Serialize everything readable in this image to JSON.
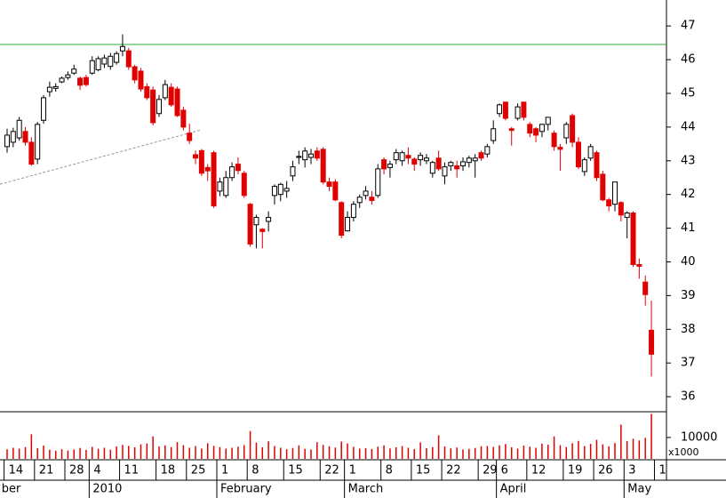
{
  "chart_data": {
    "type": "candlestick",
    "up_color": "#ffffff",
    "down_color": "#e00000",
    "open": [
      43.42,
      43.55,
      43.68,
      43.87,
      43.55,
      43.05,
      44.2,
      45.05,
      45.15,
      45.34,
      45.47,
      45.6,
      45.45,
      45.47,
      45.6,
      45.7,
      45.87,
      45.8,
      45.92,
      46.26,
      46.26,
      45.79,
      45.66,
      45.2,
      45.1,
      44.4,
      44.87,
      45.18,
      45.13,
      44.5,
      43.82,
      43.18,
      43.3,
      42.8,
      43.24,
      42.1,
      41.97,
      42.5,
      42.9,
      42.63,
      41.71,
      41.1,
      40.97,
      41.2,
      41.97,
      42.0,
      42.1,
      42.55,
      43.1,
      43.03,
      43.1,
      43.29,
      43.34,
      42.37,
      42.37,
      41.76,
      40.92,
      41.32,
      41.76,
      41.97,
      41.92,
      41.97,
      43.03,
      42.8,
      43.03,
      43.0,
      43.16,
      43.05,
      43.03,
      43.0,
      42.63,
      43.08,
      42.55,
      42.85,
      42.85,
      42.85,
      42.95,
      43.0,
      43.24,
      43.2,
      43.6,
      44.4,
      44.74,
      43.95,
      44.26,
      44.74,
      44.08,
      43.95,
      43.87,
      44.08,
      43.82,
      43.4,
      43.68,
      44.34,
      43.55,
      42.68,
      43.08,
      43.24,
      42.6,
      41.84,
      41.71,
      41.76,
      41.32,
      41.45,
      39.92,
      39.4,
      37.97
    ],
    "high": [
      43.95,
      43.98,
      44.3,
      44.0,
      43.7,
      44.15,
      44.95,
      45.35,
      45.3,
      45.5,
      45.65,
      45.85,
      45.5,
      45.55,
      46.1,
      46.1,
      46.15,
      46.2,
      46.25,
      46.75,
      46.35,
      45.85,
      45.75,
      45.3,
      45.2,
      44.95,
      45.4,
      45.3,
      45.2,
      44.6,
      44.1,
      43.3,
      43.35,
      42.9,
      43.3,
      42.5,
      42.7,
      42.95,
      43.1,
      42.7,
      41.75,
      41.4,
      41.0,
      41.5,
      42.3,
      42.35,
      42.4,
      43.0,
      43.3,
      43.4,
      43.35,
      43.4,
      43.4,
      42.5,
      42.45,
      41.8,
      41.5,
      41.8,
      42.0,
      42.25,
      42.1,
      42.9,
      43.1,
      43.0,
      43.35,
      43.3,
      43.4,
      43.1,
      43.25,
      43.2,
      43.0,
      43.3,
      42.95,
      43.0,
      43.0,
      43.1,
      43.15,
      43.2,
      43.3,
      43.5,
      44.2,
      44.7,
      44.75,
      44.0,
      44.7,
      44.75,
      44.15,
      44.0,
      44.1,
      44.3,
      43.9,
      43.5,
      44.15,
      44.4,
      43.7,
      43.1,
      43.5,
      43.3,
      42.7,
      41.9,
      42.3,
      41.8,
      41.5,
      41.5,
      40.1,
      39.6,
      38.85
    ],
    "low": [
      43.24,
      43.4,
      43.6,
      43.45,
      42.85,
      42.9,
      44.1,
      44.9,
      45.05,
      45.3,
      45.4,
      45.55,
      45.1,
      45.2,
      45.55,
      45.65,
      45.75,
      45.7,
      45.85,
      46.1,
      45.7,
      45.3,
      45.05,
      44.8,
      44.05,
      44.3,
      44.8,
      44.6,
      44.3,
      43.9,
      43.5,
      42.9,
      42.55,
      42.4,
      41.6,
      41.95,
      41.9,
      42.4,
      42.6,
      41.9,
      40.45,
      40.4,
      40.4,
      40.9,
      41.7,
      41.8,
      41.9,
      42.4,
      42.9,
      42.8,
      42.9,
      43.0,
      42.3,
      42.1,
      41.8,
      40.7,
      40.9,
      41.2,
      41.6,
      41.85,
      41.7,
      41.9,
      42.6,
      42.5,
      42.9,
      42.85,
      42.9,
      42.7,
      42.85,
      42.9,
      42.5,
      42.7,
      42.3,
      42.7,
      42.5,
      42.7,
      42.8,
      42.5,
      43.0,
      43.1,
      43.5,
      44.3,
      44.2,
      43.45,
      44.2,
      44.2,
      43.7,
      43.55,
      43.7,
      43.9,
      43.3,
      42.7,
      43.5,
      43.4,
      42.75,
      42.55,
      43.0,
      42.4,
      41.8,
      41.5,
      41.5,
      41.2,
      40.7,
      39.85,
      39.5,
      38.7,
      36.6
    ],
    "close": [
      43.76,
      43.87,
      44.2,
      43.55,
      42.9,
      44.08,
      44.87,
      45.18,
      45.2,
      45.45,
      45.55,
      45.72,
      45.24,
      45.26,
      45.97,
      46.03,
      46.05,
      46.1,
      46.18,
      46.39,
      45.79,
      45.4,
      45.13,
      44.87,
      44.13,
      44.82,
      45.26,
      44.66,
      44.34,
      44.0,
      43.6,
      43.08,
      42.63,
      42.7,
      41.66,
      42.37,
      42.5,
      42.82,
      42.71,
      41.97,
      40.53,
      41.32,
      40.9,
      41.32,
      42.24,
      42.3,
      42.18,
      42.82,
      43.13,
      43.29,
      43.2,
      43.08,
      42.37,
      42.24,
      41.84,
      40.79,
      41.32,
      41.71,
      41.92,
      42.1,
      41.82,
      42.76,
      42.76,
      42.9,
      43.24,
      43.24,
      43.08,
      42.9,
      43.16,
      43.08,
      42.95,
      42.76,
      42.82,
      42.95,
      42.76,
      42.97,
      43.08,
      43.08,
      43.08,
      43.42,
      43.95,
      44.66,
      44.26,
      43.9,
      44.6,
      44.29,
      43.82,
      43.76,
      44.08,
      44.29,
      43.42,
      43.34,
      44.08,
      43.55,
      42.82,
      43.03,
      43.42,
      42.5,
      41.84,
      41.66,
      42.37,
      41.39,
      41.45,
      39.92,
      39.87,
      39.03,
      37.26
    ],
    "volume": [
      4500,
      5200,
      4800,
      5500,
      11500,
      5000,
      6200,
      4300,
      3800,
      4500,
      3900,
      4400,
      5100,
      4200,
      5600,
      4700,
      5200,
      4300,
      5800,
      6500,
      6000,
      5400,
      6800,
      7200,
      10500,
      5800,
      6300,
      5500,
      7800,
      6400,
      5200,
      6000,
      4800,
      7300,
      6100,
      5500,
      4800,
      5200,
      5700,
      6400,
      13000,
      7600,
      5400,
      8200,
      6000,
      5200,
      4500,
      5100,
      6300,
      4700,
      4400,
      7800,
      6500,
      5900,
      5300,
      8100,
      7200,
      5600,
      4800,
      5000,
      4600,
      5700,
      6300,
      4900,
      5400,
      6000,
      5200,
      4600,
      7700,
      5000,
      5500,
      11000,
      5800,
      4900,
      5300,
      4400,
      4700,
      5100,
      5900,
      6000,
      5600,
      6300,
      6900,
      5400,
      4800,
      6200,
      5700,
      5200,
      7100,
      6600,
      10500,
      6400,
      5500,
      7300,
      8400,
      6000,
      7000,
      8900,
      6800,
      5900,
      7400,
      16000,
      8300,
      9400,
      8600,
      9800,
      21000
    ],
    "ylim": [
      35.58,
      47.77
    ],
    "yticks": [
      36,
      37,
      38,
      39,
      40,
      41,
      42,
      43,
      44,
      45,
      46,
      47
    ],
    "volume_ylim": [
      0,
      21600
    ],
    "volume_yticks": [
      10000
    ],
    "volume_unit": "x1000",
    "volume_color": "#e00000",
    "resistance": {
      "value": 46.45,
      "color": "#33aa33"
    },
    "trendline": {
      "x": [
        0,
        32
      ],
      "y": [
        42.32,
        43.92
      ],
      "color": "#999999"
    },
    "xticks": [
      {
        "value": 0,
        "label": "14"
      },
      {
        "value": 5,
        "label": "21"
      },
      {
        "value": 10,
        "label": "28"
      },
      {
        "value": 14,
        "label": "4"
      },
      {
        "value": 19,
        "label": "11"
      },
      {
        "value": 25,
        "label": "18"
      },
      {
        "value": 30,
        "label": "25"
      },
      {
        "value": 35,
        "label": "1"
      },
      {
        "value": 40,
        "label": "8"
      },
      {
        "value": 46,
        "label": "15"
      },
      {
        "value": 52,
        "label": "22"
      },
      {
        "value": 56,
        "label": "1"
      },
      {
        "value": 62,
        "label": "8"
      },
      {
        "value": 67,
        "label": "15"
      },
      {
        "value": 72,
        "label": "22"
      },
      {
        "value": 78,
        "label": "29"
      },
      {
        "value": 81,
        "label": "6"
      },
      {
        "value": 86,
        "label": "12"
      },
      {
        "value": 92,
        "label": "19"
      },
      {
        "value": 97,
        "label": "26"
      },
      {
        "value": 102,
        "label": "3"
      },
      {
        "value": 107,
        "label": "1"
      }
    ],
    "month_ticks": [
      {
        "value": -1,
        "label": "ber"
      },
      {
        "value": 14,
        "label": "2010"
      },
      {
        "value": 35,
        "label": "February"
      },
      {
        "value": 56,
        "label": "March"
      },
      {
        "value": 81,
        "label": "April"
      },
      {
        "value": 102,
        "label": "May"
      }
    ]
  }
}
